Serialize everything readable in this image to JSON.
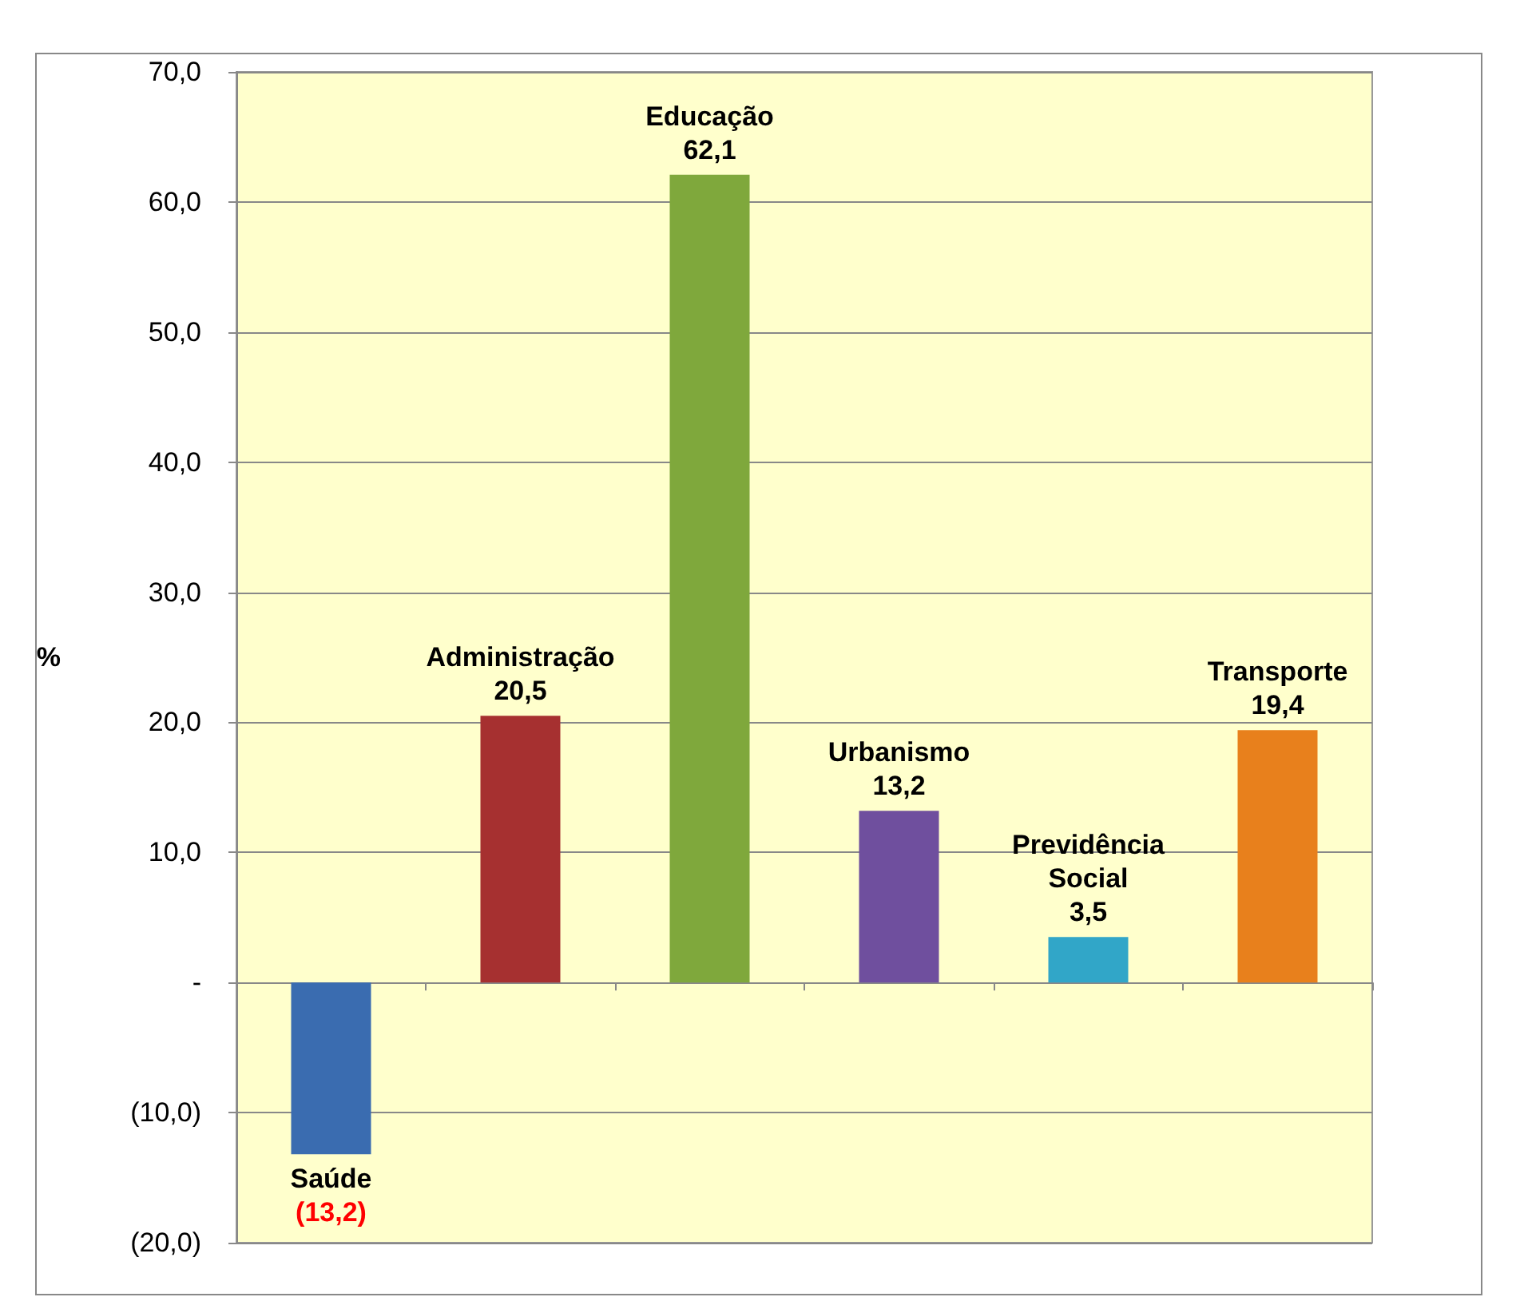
{
  "chart_data": {
    "type": "bar",
    "categories": [
      "Saúde",
      "Administração",
      "Educação",
      "Urbanismo",
      "Previdência\nSocial",
      "Transporte"
    ],
    "values": [
      -13.2,
      20.5,
      62.1,
      13.2,
      3.5,
      19.4
    ],
    "colors": [
      "#3a6cb0",
      "#a63030",
      "#7fa83c",
      "#6f4f9e",
      "#31a6c8",
      "#e8801c"
    ],
    "value_labels": [
      "(13,2)",
      "20,5",
      "62,1",
      "13,2",
      "3,5",
      "19,4"
    ],
    "ylabel": "%",
    "ylim": [
      -20,
      70
    ],
    "yticks": [
      {
        "value": -20,
        "label": "(20,0)"
      },
      {
        "value": -10,
        "label": "(10,0)"
      },
      {
        "value": 0,
        "label": "-"
      },
      {
        "value": 10,
        "label": "10,0"
      },
      {
        "value": 20,
        "label": "20,0"
      },
      {
        "value": 30,
        "label": "30,0"
      },
      {
        "value": 40,
        "label": "40,0"
      },
      {
        "value": 50,
        "label": "50,0"
      },
      {
        "value": 60,
        "label": "60,0"
      },
      {
        "value": 70,
        "label": "70,0"
      }
    ],
    "grid": "y",
    "tick_labels": "y"
  }
}
